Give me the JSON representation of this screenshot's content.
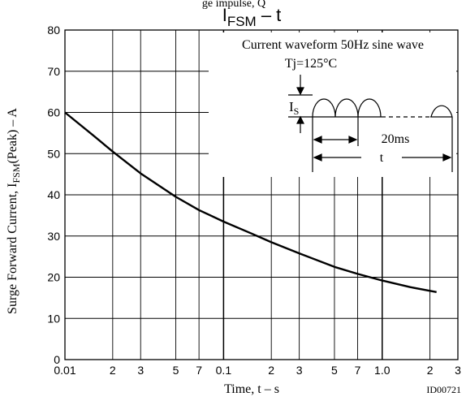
{
  "header_fragment": "ge impulse, Q",
  "chart_data": {
    "type": "line",
    "title_main": "I",
    "title_sub": "FSM",
    "title_rest": " – t",
    "ylabel_main": "Surge Forward Current, I",
    "ylabel_sub": "FSM",
    "ylabel_rest": "(Peak)  –  A",
    "xlabel": "Time, t  – s",
    "figure_id": "ID00721",
    "x_scale": "log",
    "xlim": [
      0.01,
      3
    ],
    "ylim": [
      0,
      80
    ],
    "grid": true,
    "x_ticks": [
      {
        "value": 0.01,
        "label": "0.01",
        "major": true
      },
      {
        "value": 0.02,
        "label": "2",
        "major": false
      },
      {
        "value": 0.03,
        "label": "3",
        "major": false
      },
      {
        "value": 0.05,
        "label": "5",
        "major": false
      },
      {
        "value": 0.07,
        "label": "7",
        "major": false
      },
      {
        "value": 0.1,
        "label": "0.1",
        "major": true
      },
      {
        "value": 0.2,
        "label": "2",
        "major": false
      },
      {
        "value": 0.3,
        "label": "3",
        "major": false
      },
      {
        "value": 0.5,
        "label": "5",
        "major": false
      },
      {
        "value": 0.7,
        "label": "7",
        "major": false
      },
      {
        "value": 1.0,
        "label": "1.0",
        "major": true
      },
      {
        "value": 2.0,
        "label": "2",
        "major": false
      },
      {
        "value": 3.0,
        "label": "3",
        "major": false
      }
    ],
    "y_ticks": [
      0,
      10,
      20,
      30,
      40,
      50,
      60,
      70,
      80
    ],
    "series": [
      {
        "x": [
          0.01,
          0.015,
          0.02,
          0.03,
          0.05,
          0.07,
          0.1,
          0.15,
          0.2,
          0.3,
          0.5,
          0.7,
          1.0,
          1.5,
          2.2
        ],
        "y": [
          60,
          54.5,
          50.5,
          45.2,
          39.5,
          36.3,
          33.5,
          30.6,
          28.5,
          25.8,
          22.5,
          20.8,
          19.2,
          17.6,
          16.4
        ]
      }
    ],
    "inset": {
      "line1": "Current waveform 50Hz sine wave",
      "line2": "Tj=125°C",
      "is_main": "I",
      "is_sub": "S",
      "period_label": "20ms",
      "duration_label": "t"
    }
  }
}
